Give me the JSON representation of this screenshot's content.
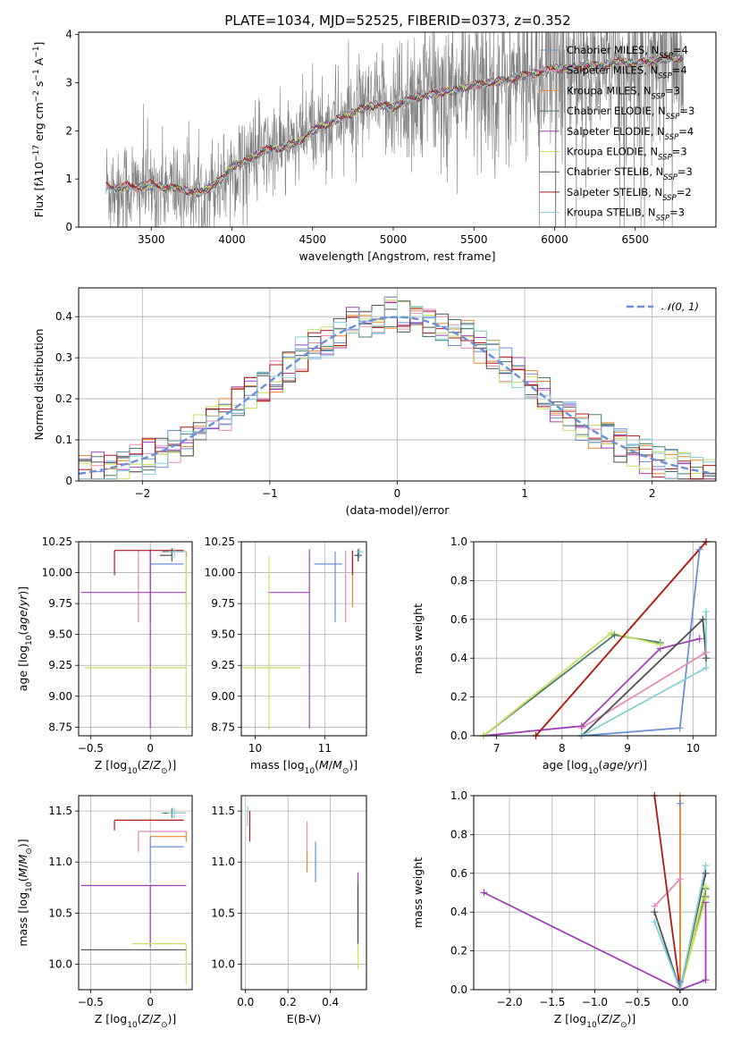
{
  "figure": {
    "title": "PLATE=1034, MJD=52525, FIBERID=0373, z=0.352"
  },
  "colors": {
    "grid": "#b0b0b0",
    "data_spectrum": "#808080",
    "normal_curve": "#6a8fd8"
  },
  "models": [
    {
      "name": "Chabrier MILES, N$_{SSP}$=4",
      "label_html": "Chabrier MILES, N<sub>SSP</sub>=4",
      "color": "#6a8fd8"
    },
    {
      "name": "Salpeter MILES, N$_{SSP}$=4",
      "label_html": "Salpeter MILES, N<sub>SSP</sub>=4",
      "color": "#e88cb8"
    },
    {
      "name": "Kroupa MILES, N$_{SSP}$=3",
      "label_html": "Kroupa MILES, N<sub>SSP</sub>=3",
      "color": "#e8882a"
    },
    {
      "name": "Chabrier ELODIE, N$_{SSP}$=3",
      "label_html": "Chabrier ELODIE, N<sub>SSP</sub>=3",
      "color": "#4a7a6e"
    },
    {
      "name": "Salpeter ELODIE, N$_{SSP}$=4",
      "label_html": "Salpeter ELODIE, N<sub>SSP</sub>=4",
      "color": "#a040b8"
    },
    {
      "name": "Kroupa ELODIE, N$_{SSP}$=3",
      "label_html": "Kroupa ELODIE, N<sub>SSP</sub>=3",
      "color": "#c8e060"
    },
    {
      "name": "Chabrier STELIB, N$_{SSP}$=3",
      "label_html": "Chabrier STELIB, N<sub>SSP</sub>=3",
      "color": "#505050"
    },
    {
      "name": "Salpeter STELIB, N$_{SSP}$=2",
      "label_html": "Salpeter STELIB, N<sub>SSP</sub>=2",
      "color": "#b01818"
    },
    {
      "name": "Kroupa STELIB, N$_{SSP}$=3",
      "label_html": "Kroupa STELIB, N<sub>SSP</sub>=3",
      "color": "#80d0d8"
    }
  ],
  "chart_data": [
    {
      "id": "spectrum",
      "type": "line",
      "xlabel": "wavelength [Angstrom, rest frame]",
      "ylabel_html": "Flux [f<tspan font-style='italic'>λ</tspan>10<tspan baseline-shift='super' font-size='9'>−17</tspan> erg cm<tspan baseline-shift='super' font-size='9'>−2</tspan> s<tspan baseline-shift='super' font-size='9'>−1</tspan> A<tspan baseline-shift='super' font-size='9'>−1</tspan>]",
      "xlim": [
        3050,
        7000
      ],
      "ylim": [
        0,
        4.05
      ],
      "xticks": [
        3500,
        4000,
        4500,
        5000,
        5500,
        6000,
        6500
      ],
      "yticks": [
        0,
        1,
        2,
        3,
        4
      ],
      "grid": false,
      "legend": "right",
      "model_anchor_x": [
        3220,
        3300,
        3400,
        3500,
        3600,
        3700,
        3800,
        3900,
        3950,
        4000,
        4100,
        4200,
        4300,
        4400,
        4500,
        4600,
        4700,
        4800,
        4900,
        5000,
        5100,
        5200,
        5300,
        5400,
        5500,
        5600,
        5700,
        5800,
        5900,
        6000,
        6100,
        6200,
        6300,
        6400,
        6500,
        6600,
        6700,
        6800
      ],
      "model_anchor_y": [
        0.85,
        0.8,
        0.82,
        0.85,
        0.82,
        0.78,
        0.7,
        0.9,
        1.05,
        1.25,
        1.4,
        1.6,
        1.65,
        1.75,
        2.0,
        2.15,
        2.3,
        2.45,
        2.55,
        2.5,
        2.65,
        2.75,
        2.8,
        2.85,
        2.95,
        3.0,
        3.05,
        3.15,
        3.2,
        3.3,
        3.3,
        3.35,
        3.35,
        3.45,
        3.4,
        3.45,
        3.5,
        3.5
      ],
      "data_x_range": [
        3220,
        6800
      ],
      "data_noise_note": ""
    },
    {
      "id": "residuals",
      "type": "histogram",
      "xlabel": "(data-model)/error",
      "ylabel": "Normed distribution",
      "xlim": [
        -2.5,
        2.5
      ],
      "ylim": [
        0,
        0.47
      ],
      "xticks": [
        -2,
        -1,
        0,
        1,
        2
      ],
      "yticks": [
        0,
        0.1,
        0.2,
        0.3,
        0.4
      ],
      "grid": true,
      "legend": "top-right",
      "legend_label": "𝒩(0, 1)",
      "bin_width": 0.1
    },
    {
      "id": "age_vs_Z",
      "type": "errorbar",
      "xlabel_html": "Z [log<tspan baseline-shift='sub' font-size='9'>10</tspan>(<tspan font-style='italic'>Z</tspan>/<tspan font-style='italic'>Z</tspan><tspan baseline-shift='sub' font-size='9'>⊙</tspan>)]",
      "ylabel_html": "age  [log<tspan baseline-shift='sub' font-size='9'>10</tspan>(<tspan font-style='italic'>age</tspan>/<tspan font-style='italic'>yr</tspan>)]",
      "xlim": [
        -0.6,
        0.35
      ],
      "ylim": [
        8.68,
        10.25
      ],
      "xticks": [
        -0.5,
        0.0
      ],
      "yticks": [
        8.75,
        9.0,
        9.25,
        9.5,
        9.75,
        10.0,
        10.25
      ],
      "ytick_labels": [
        "8.75",
        "9.00",
        "9.25",
        "9.50",
        "9.75",
        "10.00",
        "10.25"
      ],
      "grid": true,
      "points": [
        {
          "m": 0,
          "x": 0.0,
          "y": 10.07,
          "xerr": [
            0.0,
            0.28
          ],
          "yerr": [
            0.47,
            0.1
          ]
        },
        {
          "m": 1,
          "x": -0.1,
          "y": 10.02,
          "xerr": [
            0.0,
            0.0
          ],
          "yerr": [
            0.42,
            0.16
          ]
        },
        {
          "m": 2,
          "x": 0.3,
          "y": 10.17,
          "xerr": [
            0.0,
            0.0
          ],
          "yerr": [
            0.45,
            0.0
          ]
        },
        {
          "m": 3,
          "x": 0.18,
          "y": 10.17,
          "xerr": [
            0.08,
            0.1
          ],
          "yerr": [
            0.03,
            0.03
          ]
        },
        {
          "m": 4,
          "x": 0.0,
          "y": 9.84,
          "xerr": [
            0.58,
            0.3
          ],
          "yerr": [
            1.1,
            0.35
          ]
        },
        {
          "m": 5,
          "x": 0.3,
          "y": 9.23,
          "xerr": [
            0.85,
            0.0
          ],
          "yerr": [
            0.5,
            0.9
          ]
        },
        {
          "m": 6,
          "x": 0.18,
          "y": 10.14,
          "xerr": [
            0.1,
            0.0
          ],
          "yerr": [
            0.05,
            0.05
          ]
        },
        {
          "m": 7,
          "x": -0.3,
          "y": 10.18,
          "xerr": [
            0.0,
            0.58
          ],
          "yerr": [
            0.2,
            0.0
          ]
        },
        {
          "m": 8,
          "x": 0.2,
          "y": 10.17,
          "xerr": [
            0.05,
            0.1
          ],
          "yerr": [
            0.05,
            0.03
          ]
        }
      ]
    },
    {
      "id": "age_vs_mass",
      "type": "errorbar",
      "xlabel_html": "mass [log<tspan baseline-shift='sub' font-size='9'>10</tspan>(<tspan font-style='italic'>M</tspan>/<tspan font-style='italic'>M</tspan><tspan baseline-shift='sub' font-size='9'>⊙</tspan>)]",
      "xlim": [
        9.8,
        11.6
      ],
      "ylim": [
        8.68,
        10.25
      ],
      "xticks": [
        10,
        11
      ],
      "yticks": [
        8.75,
        9.0,
        9.25,
        9.5,
        9.75,
        10.0,
        10.25
      ],
      "ytick_labels": [
        "8.75",
        "9.00",
        "9.25",
        "9.50",
        "9.75",
        "10.00",
        "10.25"
      ],
      "grid": true,
      "points": [
        {
          "m": 0,
          "x": 11.15,
          "y": 10.07,
          "xerr": [
            0.3,
            0.1
          ],
          "yerr": [
            0.47,
            0.1
          ]
        },
        {
          "m": 1,
          "x": 11.3,
          "y": 10.02,
          "xerr": [
            0.0,
            0.0
          ],
          "yerr": [
            0.42,
            0.16
          ]
        },
        {
          "m": 2,
          "x": 11.4,
          "y": 10.17,
          "xerr": [
            0.0,
            0.0
          ],
          "yerr": [
            0.45,
            0.0
          ]
        },
        {
          "m": 3,
          "x": 11.48,
          "y": 10.14,
          "xerr": [
            0.05,
            0.05
          ],
          "yerr": [
            0.04,
            0.04
          ]
        },
        {
          "m": 4,
          "x": 10.78,
          "y": 9.84,
          "xerr": [
            0.6,
            0.0
          ],
          "yerr": [
            1.1,
            0.35
          ]
        },
        {
          "m": 5,
          "x": 10.2,
          "y": 9.23,
          "xerr": [
            0.4,
            0.45
          ],
          "yerr": [
            0.5,
            0.9
          ]
        },
        {
          "m": 6,
          "x": 11.48,
          "y": 10.14,
          "xerr": [
            0.05,
            0.05
          ],
          "yerr": [
            0.05,
            0.05
          ]
        },
        {
          "m": 7,
          "x": 11.4,
          "y": 10.18,
          "xerr": [
            0.0,
            0.0
          ],
          "yerr": [
            0.2,
            0.0
          ]
        },
        {
          "m": 8,
          "x": 11.5,
          "y": 10.17,
          "xerr": [
            0.05,
            0.05
          ],
          "yerr": [
            0.05,
            0.03
          ]
        }
      ]
    },
    {
      "id": "weight_vs_age",
      "type": "line",
      "xlabel_html": "age  [log<tspan baseline-shift='sub' font-size='9'>10</tspan>(<tspan font-style='italic'>age</tspan>/<tspan font-style='italic'>yr</tspan>)]",
      "ylabel": "mass weight",
      "xlim": [
        6.65,
        10.35
      ],
      "ylim": [
        0,
        1
      ],
      "xticks": [
        7,
        8,
        9,
        10
      ],
      "yticks": [
        0.0,
        0.2,
        0.4,
        0.6,
        0.8,
        1.0
      ],
      "ytick_labels": [
        "0.0",
        "0.2",
        "0.4",
        "0.6",
        "0.8",
        "1.0"
      ],
      "grid": true,
      "series": [
        {
          "m": 0,
          "x": [
            8.3,
            9.8,
            10.1
          ],
          "y": [
            0.0,
            0.04,
            0.96
          ]
        },
        {
          "m": 1,
          "x": [
            8.3,
            10.2
          ],
          "y": [
            0.04,
            0.43
          ]
        },
        {
          "m": 2,
          "x": [
            7.6,
            10.2
          ],
          "y": [
            0.0,
            1.0
          ]
        },
        {
          "m": 3,
          "x": [
            6.8,
            8.8,
            9.5
          ],
          "y": [
            0.0,
            0.52,
            0.48
          ]
        },
        {
          "m": 4,
          "x": [
            6.8,
            8.3,
            9.5,
            10.1
          ],
          "y": [
            0.0,
            0.05,
            0.45,
            0.5
          ]
        },
        {
          "m": 5,
          "x": [
            6.8,
            8.75,
            9.5
          ],
          "y": [
            0.0,
            0.53,
            0.47
          ]
        },
        {
          "m": 6,
          "x": [
            8.3,
            10.15,
            10.2
          ],
          "y": [
            0.0,
            0.6,
            0.4
          ]
        },
        {
          "m": 7,
          "x": [
            7.6,
            10.2
          ],
          "y": [
            0.0,
            1.0
          ]
        },
        {
          "m": 8,
          "x": [
            8.3,
            10.2,
            10.2
          ],
          "y": [
            0.0,
            0.35,
            0.64
          ]
        }
      ]
    },
    {
      "id": "mass_vs_Z",
      "type": "errorbar",
      "xlabel_html": "Z [log<tspan baseline-shift='sub' font-size='9'>10</tspan>(<tspan font-style='italic'>Z</tspan>/<tspan font-style='italic'>Z</tspan><tspan baseline-shift='sub' font-size='9'>⊙</tspan>)]",
      "ylabel_html": "mass [log<tspan baseline-shift='sub' font-size='9'>10</tspan>(<tspan font-style='italic'>M</tspan>/<tspan font-style='italic'>M</tspan><tspan baseline-shift='sub' font-size='9'>⊙</tspan>)]",
      "xlim": [
        -0.6,
        0.35
      ],
      "ylim": [
        9.75,
        11.65
      ],
      "xticks": [
        -0.5,
        0.0
      ],
      "yticks": [
        10.0,
        10.5,
        11.0,
        11.5
      ],
      "ytick_labels": [
        "10.0",
        "10.5",
        "11.0",
        "11.5"
      ],
      "grid": true,
      "points": [
        {
          "m": 0,
          "x": 0.0,
          "y": 11.15,
          "xerr": [
            0.0,
            0.28
          ],
          "yerr": [
            0.35,
            0.1
          ]
        },
        {
          "m": 1,
          "x": -0.1,
          "y": 11.3,
          "xerr": [
            0.0,
            0.4
          ],
          "yerr": [
            0.2,
            0.0
          ]
        },
        {
          "m": 2,
          "x": 0.3,
          "y": 11.25,
          "xerr": [
            0.3,
            0.0
          ],
          "yerr": [
            0.05,
            0.05
          ]
        },
        {
          "m": 3,
          "x": 0.18,
          "y": 11.48,
          "xerr": [
            0.08,
            0.1
          ],
          "yerr": [
            0.05,
            0.05
          ]
        },
        {
          "m": 4,
          "x": 0.0,
          "y": 10.77,
          "xerr": [
            0.58,
            0.3
          ],
          "yerr": [
            0.6,
            0.0
          ]
        },
        {
          "m": 5,
          "x": 0.3,
          "y": 10.2,
          "xerr": [
            0.45,
            0.0
          ],
          "yerr": [
            0.4,
            0.0
          ]
        },
        {
          "m": 6,
          "x": 0.0,
          "y": 10.14,
          "xerr": [
            0.58,
            0.3
          ],
          "yerr": [
            0.0,
            0.0
          ]
        },
        {
          "m": 7,
          "x": -0.3,
          "y": 11.41,
          "xerr": [
            0.0,
            0.58
          ],
          "yerr": [
            0.1,
            0.0
          ]
        },
        {
          "m": 8,
          "x": 0.2,
          "y": 11.48,
          "xerr": [
            0.05,
            0.1
          ],
          "yerr": [
            0.05,
            0.05
          ]
        }
      ]
    },
    {
      "id": "mass_vs_ebv",
      "type": "errorbar",
      "xlabel": "E(B-V)",
      "xlim": [
        -0.02,
        0.57
      ],
      "ylim": [
        9.75,
        11.65
      ],
      "xticks": [
        0.0,
        0.2,
        0.4
      ],
      "xtick_labels": [
        "0.0",
        "0.2",
        "0.4"
      ],
      "yticks": [
        10.0,
        10.5,
        11.0,
        11.5
      ],
      "ytick_labels": [
        "10.0",
        "10.5",
        "11.0",
        "11.5"
      ],
      "grid": true,
      "points": [
        {
          "m": 0,
          "x": 0.33,
          "y": 11.0,
          "xerr": [
            0,
            0
          ],
          "yerr": [
            0.2,
            0.2
          ]
        },
        {
          "m": 1,
          "x": 0.29,
          "y": 11.2,
          "xerr": [
            0,
            0
          ],
          "yerr": [
            0.2,
            0.2
          ]
        },
        {
          "m": 2,
          "x": 0.29,
          "y": 11.0,
          "xerr": [
            0,
            0
          ],
          "yerr": [
            0.1,
            0.1
          ]
        },
        {
          "m": 3,
          "x": 0.53,
          "y": 10.45,
          "xerr": [
            0,
            0
          ],
          "yerr": [
            0.3,
            0.3
          ]
        },
        {
          "m": 4,
          "x": 0.53,
          "y": 10.6,
          "xerr": [
            0,
            0
          ],
          "yerr": [
            0.25,
            0.3
          ]
        },
        {
          "m": 5,
          "x": 0.53,
          "y": 10.35,
          "xerr": [
            0,
            0
          ],
          "yerr": [
            0.4,
            0.4
          ]
        },
        {
          "m": 6,
          "x": 0.53,
          "y": 10.5,
          "xerr": [
            0,
            0
          ],
          "yerr": [
            0.3,
            0.3
          ]
        },
        {
          "m": 7,
          "x": 0.02,
          "y": 11.35,
          "xerr": [
            0,
            0
          ],
          "yerr": [
            0.15,
            0.15
          ]
        },
        {
          "m": 8,
          "x": 0.01,
          "y": 11.45,
          "xerr": [
            0,
            0
          ],
          "yerr": [
            0.1,
            0.1
          ]
        }
      ]
    },
    {
      "id": "weight_vs_Z",
      "type": "line",
      "xlabel_html": "Z [log<tspan baseline-shift='sub' font-size='9'>10</tspan>(<tspan font-style='italic'>Z</tspan>/<tspan font-style='italic'>Z</tspan><tspan baseline-shift='sub' font-size='9'>⊙</tspan>)]",
      "ylabel": "mass weight",
      "xlim": [
        -2.42,
        0.42
      ],
      "ylim": [
        0,
        1
      ],
      "xticks": [
        -2.0,
        -1.5,
        -1.0,
        -0.5,
        0.0
      ],
      "xtick_labels": [
        "−2.0",
        "−1.5",
        "−1.0",
        "−0.5",
        "0.0"
      ],
      "yticks": [
        0.0,
        0.2,
        0.4,
        0.6,
        0.8,
        1.0
      ],
      "ytick_labels": [
        "0.0",
        "0.2",
        "0.4",
        "0.6",
        "0.8",
        "1.0"
      ],
      "grid": true,
      "series": [
        {
          "m": 0,
          "x": [
            0.0,
            0.0,
            0.0
          ],
          "y": [
            0.0,
            0.04,
            0.96
          ]
        },
        {
          "m": 1,
          "x": [
            -0.3,
            0.0,
            0.0
          ],
          "y": [
            0.43,
            0.57,
            0.0
          ]
        },
        {
          "m": 2,
          "x": [
            0.0,
            0.0
          ],
          "y": [
            0.0,
            1.0
          ]
        },
        {
          "m": 3,
          "x": [
            0.3,
            0.0,
            0.3
          ],
          "y": [
            0.52,
            0.0,
            0.48
          ]
        },
        {
          "m": 4,
          "x": [
            -2.3,
            0.0,
            0.3,
            0.3
          ],
          "y": [
            0.5,
            0.0,
            0.05,
            0.45
          ]
        },
        {
          "m": 5,
          "x": [
            0.3,
            0.0,
            0.3
          ],
          "y": [
            0.53,
            0.0,
            0.47
          ]
        },
        {
          "m": 6,
          "x": [
            -0.3,
            0.0,
            0.3
          ],
          "y": [
            0.4,
            0.0,
            0.6
          ]
        },
        {
          "m": 7,
          "x": [
            -0.3,
            0.0
          ],
          "y": [
            1.0,
            0.0
          ]
        },
        {
          "m": 8,
          "x": [
            -0.3,
            0.0,
            0.3
          ],
          "y": [
            0.35,
            0.0,
            0.64
          ]
        }
      ]
    }
  ]
}
